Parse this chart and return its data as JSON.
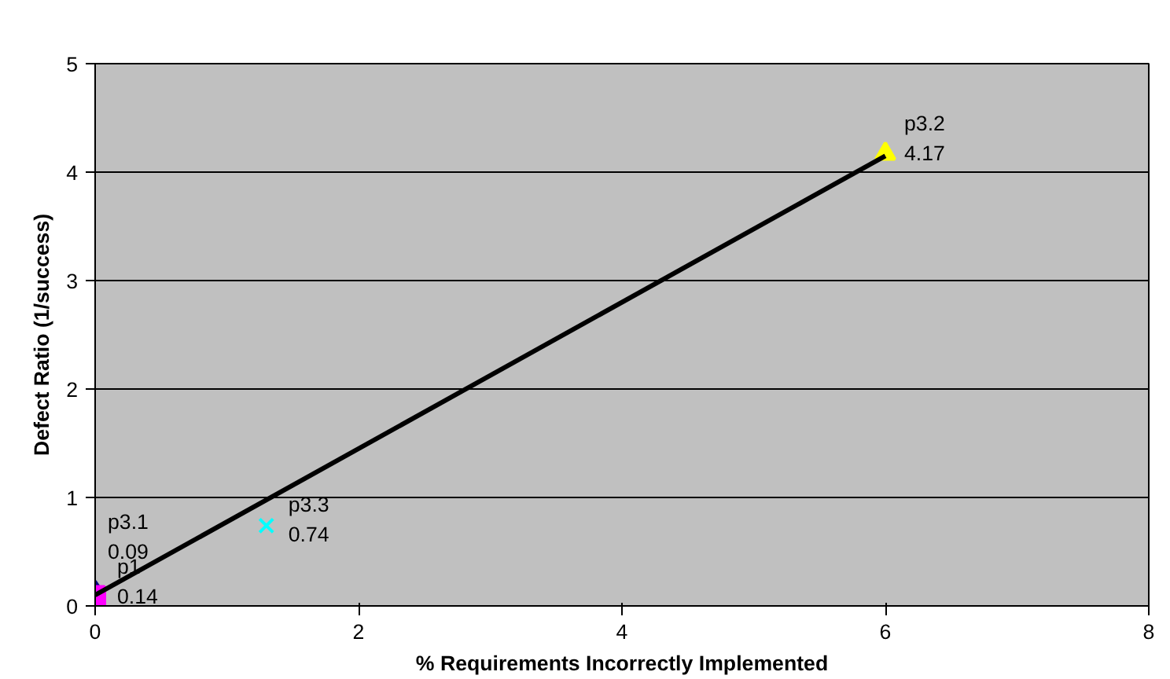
{
  "chart_data": {
    "type": "scatter",
    "xlabel": "% Requirements Incorrectly Implemented",
    "ylabel": "Defect Ratio (1/success)",
    "xlim": [
      0,
      8
    ],
    "xticks": [
      0,
      2,
      4,
      6,
      8
    ],
    "ylim": [
      0,
      5
    ],
    "yticks": [
      0,
      1,
      2,
      3,
      4,
      5
    ],
    "grid": "y",
    "series": [
      {
        "name": "p1",
        "color": "#000080",
        "marker": "diamond",
        "x": [
          0
        ],
        "values": [
          0.14
        ],
        "value_labels": [
          "0.14"
        ]
      },
      {
        "name": "p3.1",
        "color": "#ff00ff",
        "marker": "square",
        "x": [
          0
        ],
        "values": [
          0.09
        ],
        "value_labels": [
          "0.09"
        ]
      },
      {
        "name": "p3.3",
        "color": "#00ffff",
        "marker": "cross",
        "x": [
          1.3
        ],
        "values": [
          0.74
        ],
        "value_labels": [
          "0.74"
        ]
      },
      {
        "name": "p3.2",
        "color": "#ffff00",
        "marker": "triangle",
        "x": [
          6
        ],
        "values": [
          4.17
        ],
        "value_labels": [
          "4.17"
        ]
      },
      {
        "type": "line",
        "color": "#000000",
        "marker": "none",
        "x": [
          0,
          6
        ],
        "values": [
          0.1,
          4.15
        ]
      }
    ]
  }
}
